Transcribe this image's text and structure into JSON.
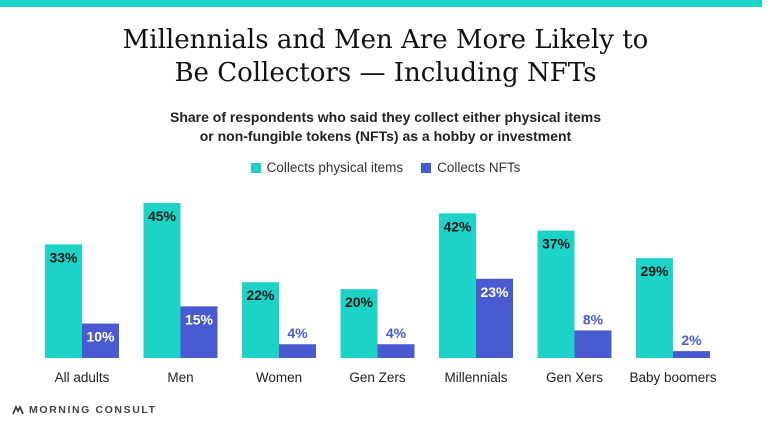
{
  "title": [
    "Millennials and Men Are More Likely to",
    "Be Collectors — Including NFTs"
  ],
  "subtitle": [
    "Share of respondents who said they collect either physical items",
    "or non-fungible tokens (NFTs) as a hobby or investment"
  ],
  "colors": {
    "accent": "#1dd3c7",
    "physical": "#1dd3c7",
    "nfts": "#4a5bd1"
  },
  "chart_data": {
    "type": "bar",
    "categories": [
      "All adults",
      "Men",
      "Women",
      "Gen Zers",
      "Millennials",
      "Gen Xers",
      "Baby boomers"
    ],
    "series": [
      {
        "name": "Collects physical items",
        "values": [
          33,
          45,
          22,
          20,
          42,
          37,
          29
        ],
        "labels": [
          "33%",
          "45%",
          "22%",
          "20%",
          "42%",
          "37%",
          "29%"
        ]
      },
      {
        "name": "Collects NFTs",
        "values": [
          10,
          15,
          4,
          4,
          23,
          8,
          2
        ],
        "labels": [
          "10%",
          "15%",
          "4%",
          "4%",
          "23%",
          "8%",
          "2%"
        ]
      }
    ],
    "ylim": [
      0,
      45
    ],
    "grid": false,
    "legend": "top-center"
  },
  "footer": {
    "brand": "MORNING CONSULT"
  }
}
